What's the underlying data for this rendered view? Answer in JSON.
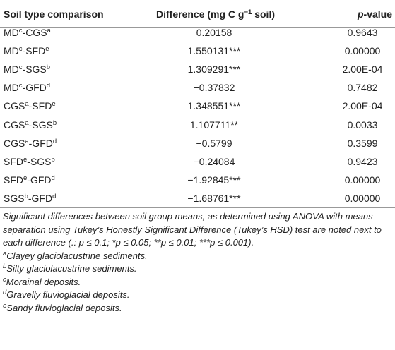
{
  "table": {
    "header": {
      "comparison": "Soil type comparison",
      "difference": [
        {
          "text": "Difference (mg C g"
        },
        {
          "sup": "−1"
        },
        {
          "text": " soil)"
        }
      ],
      "pvalue": [
        {
          "italic": "p"
        },
        {
          "text": "-value"
        }
      ]
    },
    "rows": [
      {
        "comparison": [
          {
            "text": "MD",
            "sup": "c"
          },
          {
            "text": "-CGS",
            "sup": "a"
          }
        ],
        "difference": "0.20158",
        "pvalue": "0.9643"
      },
      {
        "comparison": [
          {
            "text": "MD",
            "sup": "c"
          },
          {
            "text": "-SFD",
            "sup": "e"
          }
        ],
        "difference": "1.550131***",
        "pvalue": "0.00000"
      },
      {
        "comparison": [
          {
            "text": "MD",
            "sup": "c"
          },
          {
            "text": "-SGS",
            "sup": "b"
          }
        ],
        "difference": "1.309291***",
        "pvalue": "2.00E-04"
      },
      {
        "comparison": [
          {
            "text": "MD",
            "sup": "c"
          },
          {
            "text": "-GFD",
            "sup": "d"
          }
        ],
        "difference": "−0.37832",
        "pvalue": "0.7482"
      },
      {
        "comparison": [
          {
            "text": "CGS",
            "sup": "a"
          },
          {
            "text": "-SFD",
            "sup": "e"
          }
        ],
        "difference": "1.348551***",
        "pvalue": "2.00E-04"
      },
      {
        "comparison": [
          {
            "text": "CGS",
            "sup": "a"
          },
          {
            "text": "-SGS",
            "sup": "b"
          }
        ],
        "difference": "1.107711**",
        "pvalue": "0.0033"
      },
      {
        "comparison": [
          {
            "text": "CGS",
            "sup": "a"
          },
          {
            "text": "-GFD",
            "sup": "d"
          }
        ],
        "difference": "−0.5799",
        "pvalue": "0.3599"
      },
      {
        "comparison": [
          {
            "text": "SFD",
            "sup": "e"
          },
          {
            "text": "-SGS",
            "sup": "b"
          }
        ],
        "difference": "−0.24084",
        "pvalue": "0.9423"
      },
      {
        "comparison": [
          {
            "text": "SFD",
            "sup": "e"
          },
          {
            "text": "-GFD",
            "sup": "d"
          }
        ],
        "difference": "−1.92845***",
        "pvalue": "0.00000"
      },
      {
        "comparison": [
          {
            "text": "SGS",
            "sup": "b"
          },
          {
            "text": "-GFD",
            "sup": "d"
          }
        ],
        "difference": "−1.68761***",
        "pvalue": "0.00000"
      }
    ],
    "note": "Significant differences between soil group means, as determined using ANOVA with means separation using Tukey’s Honestly Significant Difference (Tukey’s HSD) test are noted next to each difference (.: p ≤ 0.1; *p ≤ 0.05; **p ≤ 0.01; ***p ≤ 0.001).",
    "footnotes": [
      {
        "mark": "a",
        "text": "Clayey glaciolacustrine sediments."
      },
      {
        "mark": "b",
        "text": "Silty glaciolacustrine sediments."
      },
      {
        "mark": "c",
        "text": "Morainal deposits."
      },
      {
        "mark": "d",
        "text": "Gravelly fluvioglacial deposits."
      },
      {
        "mark": "e",
        "text": "Sandy fluvioglacial deposits."
      }
    ]
  }
}
